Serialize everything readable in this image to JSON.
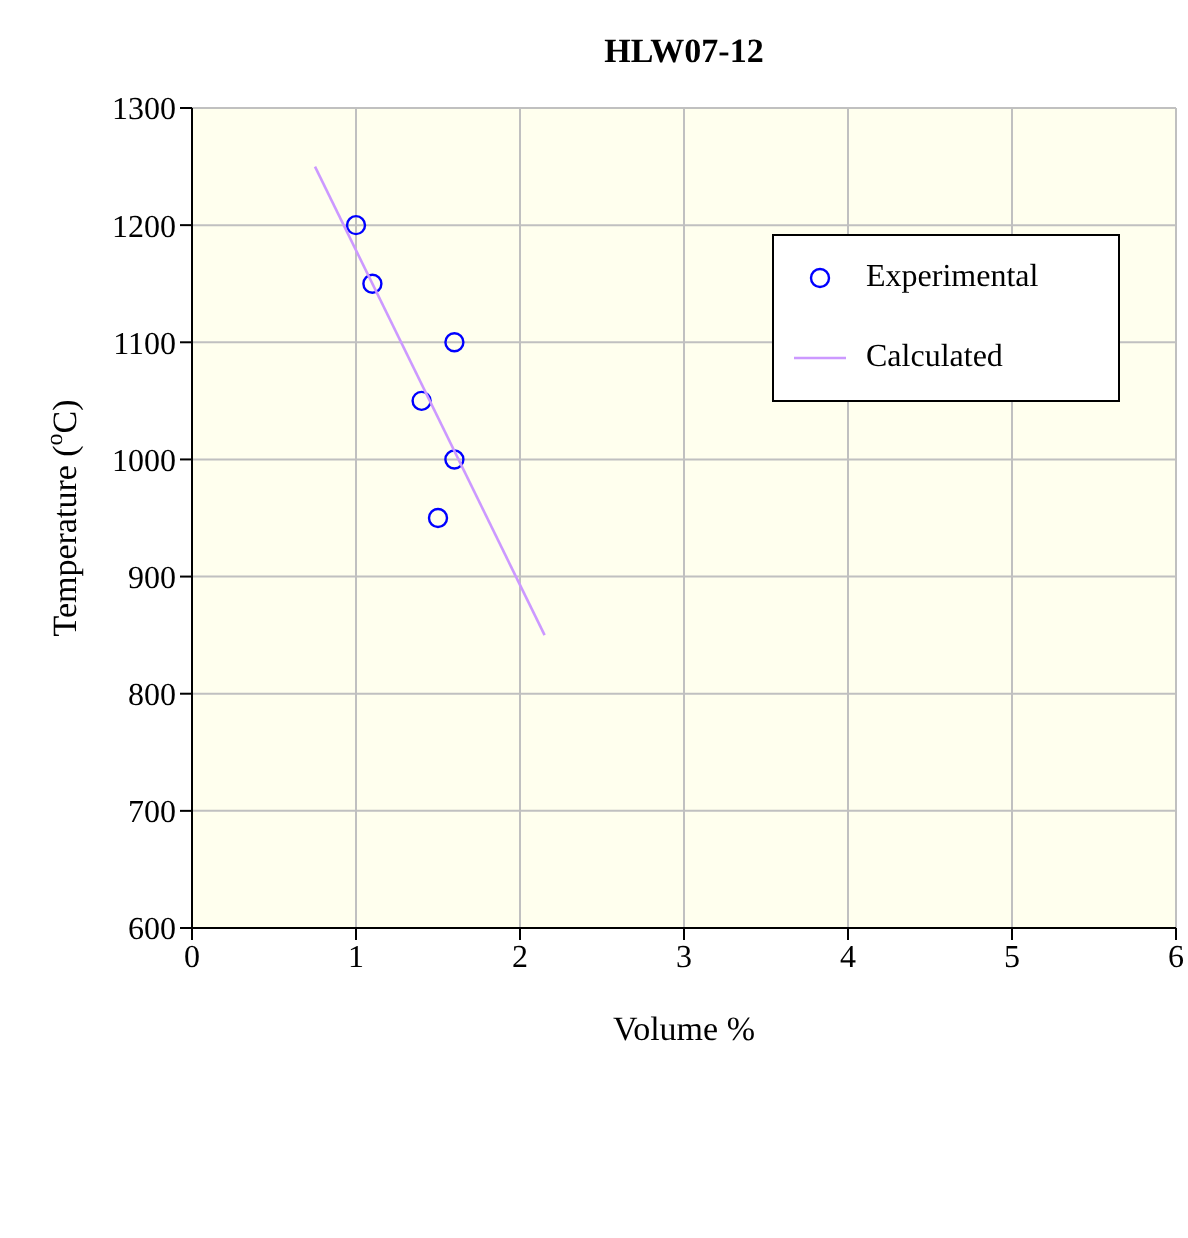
{
  "chart_data": {
    "type": "scatter",
    "title": "HLW07-12",
    "xlabel": "Volume %",
    "ylabel": "Temperature  ($^{o}$C)",
    "xlim": [
      0,
      6
    ],
    "xticks": [
      0,
      1,
      2,
      3,
      4,
      5,
      6
    ],
    "ylim": [
      600,
      1300
    ],
    "yticks": [
      600,
      700,
      800,
      900,
      1000,
      1100,
      1200,
      1300
    ],
    "grid": true,
    "legend": "top right",
    "series": [
      {
        "name": "Experimental",
        "type": "scatter",
        "marker": "circle",
        "color": "#0000ff",
        "x": [
          1.0,
          1.1,
          1.6,
          1.4,
          1.6,
          1.5
        ],
        "values": [
          1200,
          1150,
          1100,
          1050,
          1000,
          950
        ]
      },
      {
        "name": "Calculated",
        "type": "line",
        "marker": "none",
        "color": "#cc99ff",
        "x": [
          0.75,
          2.15
        ],
        "values": [
          1250,
          850
        ]
      }
    ]
  }
}
